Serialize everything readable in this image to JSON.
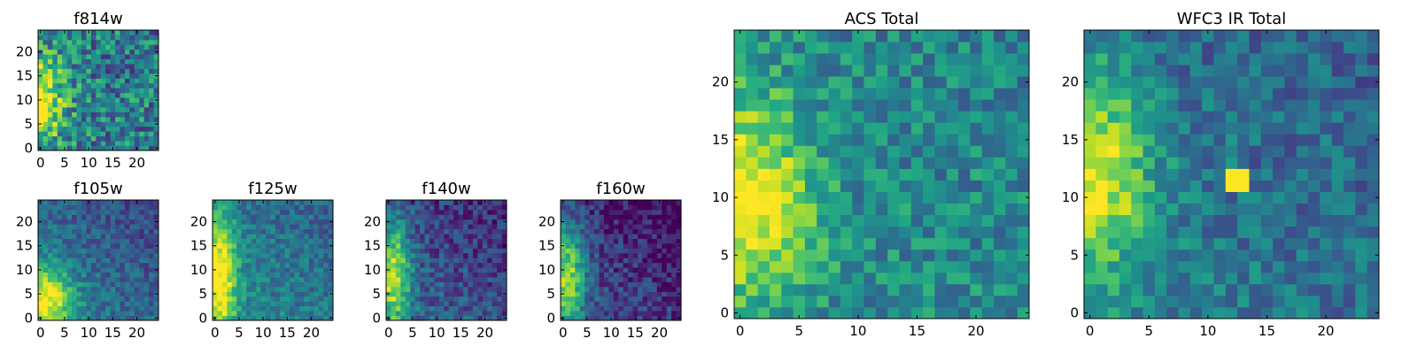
{
  "figure": {
    "description_free": true
  },
  "chart_data": [
    {
      "type": "heatmap",
      "title": "f814w",
      "colormap": "viridis",
      "grid": false,
      "xlim": [
        0,
        25
      ],
      "ylim": [
        0,
        25
      ],
      "xticks": [
        0,
        5,
        10,
        15,
        20
      ],
      "yticks": [
        0,
        5,
        10,
        15,
        20
      ],
      "xtick_labels": [
        "0",
        "5",
        "10",
        "15",
        "20"
      ],
      "ytick_labels": [
        "0",
        "5",
        "10",
        "15",
        "20"
      ],
      "field": {
        "bright_x": 0,
        "bright_y": 10,
        "bright_sigma_x": 3.5,
        "bright_sigma_y": 6,
        "base": 0.45,
        "noise": 0.28,
        "dark_gradient": 0.05,
        "seed": 11
      }
    },
    {
      "type": "heatmap",
      "title": "f105w",
      "colormap": "viridis",
      "grid": false,
      "xlim": [
        0,
        25
      ],
      "ylim": [
        0,
        25
      ],
      "xticks": [
        0,
        5,
        10,
        15,
        20
      ],
      "yticks": [
        0,
        5,
        10,
        15,
        20
      ],
      "xtick_labels": [
        "0",
        "5",
        "10",
        "15",
        "20"
      ],
      "ytick_labels": [
        "0",
        "5",
        "10",
        "15",
        "20"
      ],
      "field": {
        "bright_x": 1,
        "bright_y": 4,
        "bright_sigma_x": 4,
        "bright_sigma_y": 5,
        "base": 0.45,
        "noise": 0.14,
        "dark_gradient": 0.25,
        "seed": 23
      }
    },
    {
      "type": "heatmap",
      "title": "f125w",
      "colormap": "viridis",
      "grid": false,
      "xlim": [
        0,
        25
      ],
      "ylim": [
        0,
        25
      ],
      "xticks": [
        0,
        5,
        10,
        15,
        20
      ],
      "yticks": [
        0,
        5,
        10,
        15,
        20
      ],
      "xtick_labels": [
        "0",
        "5",
        "10",
        "15",
        "20"
      ],
      "ytick_labels": [
        "0",
        "5",
        "10",
        "15",
        "20"
      ],
      "field": {
        "bright_x": 1,
        "bright_y": 9,
        "bright_sigma_x": 2.5,
        "bright_sigma_y": 9,
        "base": 0.5,
        "noise": 0.14,
        "dark_gradient": 0.2,
        "seed": 37
      }
    },
    {
      "type": "heatmap",
      "title": "f140w",
      "colormap": "viridis",
      "grid": false,
      "xlim": [
        0,
        25
      ],
      "ylim": [
        0,
        25
      ],
      "xticks": [
        0,
        5,
        10,
        15,
        20
      ],
      "yticks": [
        0,
        5,
        10,
        15,
        20
      ],
      "xtick_labels": [
        "0",
        "5",
        "10",
        "15",
        "20"
      ],
      "ytick_labels": [
        "0",
        "5",
        "10",
        "15",
        "20"
      ],
      "field": {
        "bright_x": 1,
        "bright_y": 9,
        "bright_sigma_x": 2.5,
        "bright_sigma_y": 8,
        "base": 0.35,
        "noise": 0.16,
        "dark_gradient": 0.25,
        "seed": 41
      }
    },
    {
      "type": "heatmap",
      "title": "f160w",
      "colormap": "viridis",
      "grid": false,
      "xlim": [
        0,
        25
      ],
      "ylim": [
        0,
        25
      ],
      "xticks": [
        0,
        5,
        10,
        15,
        20
      ],
      "yticks": [
        0,
        5,
        10,
        15,
        20
      ],
      "xtick_labels": [
        "0",
        "5",
        "10",
        "15",
        "20"
      ],
      "ytick_labels": [
        "0",
        "5",
        "10",
        "15",
        "20"
      ],
      "field": {
        "bright_x": 1,
        "bright_y": 9,
        "bright_sigma_x": 2.5,
        "bright_sigma_y": 8,
        "base": 0.3,
        "noise": 0.16,
        "dark_gradient": 0.3,
        "seed": 53
      }
    },
    {
      "type": "heatmap",
      "title": "ACS Total",
      "colormap": "viridis",
      "grid": false,
      "xlim": [
        0,
        25
      ],
      "ylim": [
        0,
        25
      ],
      "xticks": [
        0,
        5,
        10,
        15,
        20
      ],
      "yticks": [
        0,
        5,
        10,
        15,
        20
      ],
      "xtick_labels": [
        "0",
        "5",
        "10",
        "15",
        "20"
      ],
      "ytick_labels": [
        "0",
        "5",
        "10",
        "15",
        "20"
      ],
      "field": {
        "bright_x": 0,
        "bright_y": 10,
        "bright_sigma_x": 4,
        "bright_sigma_y": 6,
        "base": 0.5,
        "noise": 0.18,
        "dark_gradient": 0.05,
        "seed": 67
      }
    },
    {
      "type": "heatmap",
      "title": "WFC3 IR Total",
      "colormap": "viridis",
      "grid": false,
      "xlim": [
        0,
        25
      ],
      "ylim": [
        0,
        25
      ],
      "xticks": [
        0,
        5,
        10,
        15,
        20
      ],
      "yticks": [
        0,
        5,
        10,
        15,
        20
      ],
      "xtick_labels": [
        "0",
        "5",
        "10",
        "15",
        "20"
      ],
      "ytick_labels": [
        "0",
        "5",
        "10",
        "15",
        "20"
      ],
      "field": {
        "bright_x": 0,
        "bright_y": 12,
        "bright_sigma_x": 3.5,
        "bright_sigma_y": 6,
        "base": 0.45,
        "noise": 0.16,
        "dark_gradient": 0.15,
        "seed": 79,
        "hot_pixels": [
          [
            12,
            11
          ],
          [
            13,
            11
          ],
          [
            12,
            12
          ],
          [
            13,
            12
          ]
        ]
      }
    }
  ]
}
